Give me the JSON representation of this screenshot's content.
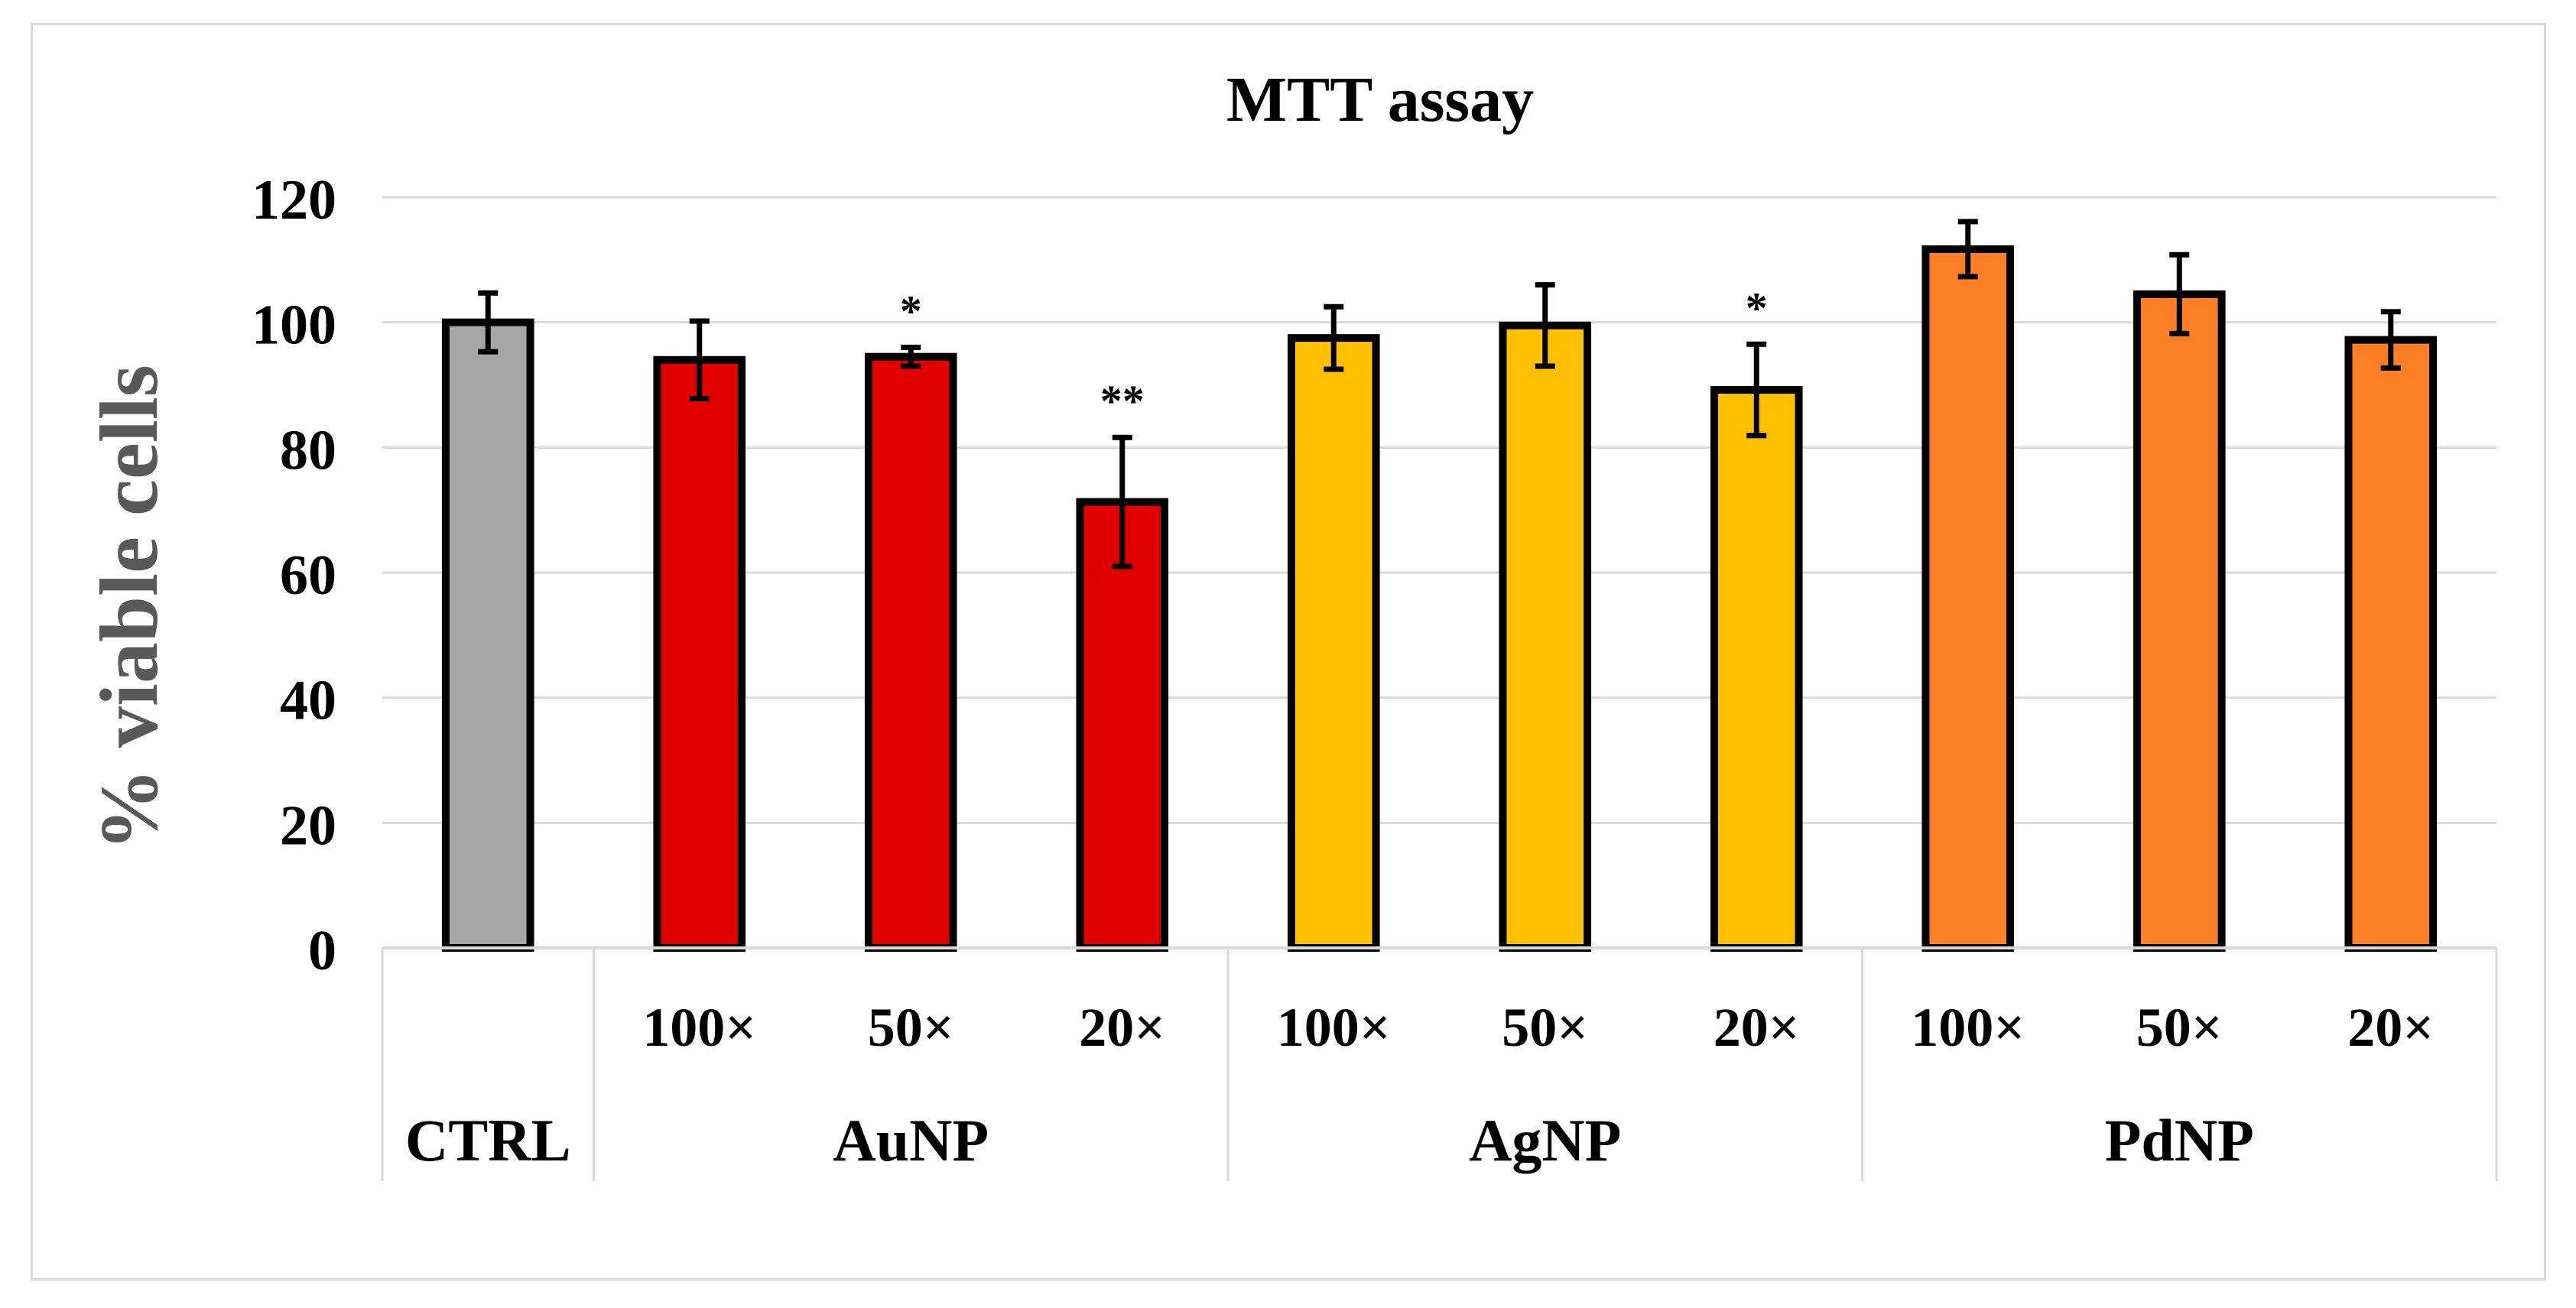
{
  "chart_data": {
    "type": "bar",
    "title": "MTT assay",
    "ylabel": "% viable cells",
    "xlabel": "",
    "ylim": [
      0,
      120
    ],
    "yticks": [
      0,
      20,
      40,
      60,
      80,
      100,
      120
    ],
    "grid": true,
    "legend": "none",
    "bars": [
      {
        "group": "CTRL",
        "label": "",
        "value": 100,
        "error": 4.7,
        "sig": "",
        "color": "#a6a6a6"
      },
      {
        "group": "AuNP",
        "label": "100×",
        "value": 94,
        "error": 6.2,
        "sig": "",
        "color": "#e00000"
      },
      {
        "group": "AuNP",
        "label": "50×",
        "value": 94.5,
        "error": 1.5,
        "sig": "*",
        "color": "#e00000"
      },
      {
        "group": "AuNP",
        "label": "20×",
        "value": 71.3,
        "error": 10.3,
        "sig": "**",
        "color": "#e00000"
      },
      {
        "group": "AgNP",
        "label": "100×",
        "value": 97.5,
        "error": 5,
        "sig": "",
        "color": "#ffc000"
      },
      {
        "group": "AgNP",
        "label": "50×",
        "value": 99.5,
        "error": 6.5,
        "sig": "",
        "color": "#ffc000"
      },
      {
        "group": "AgNP",
        "label": "20×",
        "value": 89.2,
        "error": 7.3,
        "sig": "*",
        "color": "#ffc000"
      },
      {
        "group": "PdNP",
        "label": "100×",
        "value": 111.7,
        "error": 4.4,
        "sig": "",
        "color": "#ff7f27"
      },
      {
        "group": "PdNP",
        "label": "50×",
        "value": 104.5,
        "error": 6.3,
        "sig": "",
        "color": "#ff7f27"
      },
      {
        "group": "PdNP",
        "label": "20×",
        "value": 97.2,
        "error": 4.5,
        "sig": "",
        "color": "#ff7f27"
      }
    ],
    "groups": [
      "CTRL",
      "AuNP",
      "AgNP",
      "PdNP"
    ]
  }
}
